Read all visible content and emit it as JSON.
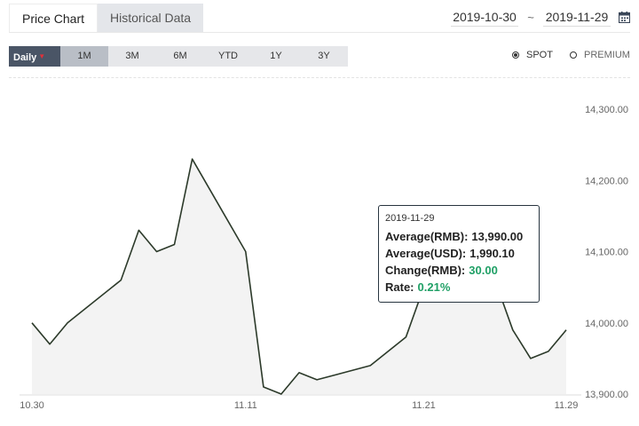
{
  "tabs": [
    {
      "label": "Price Chart",
      "active": true
    },
    {
      "label": "Historical Data",
      "active": false
    }
  ],
  "date_range": {
    "start": "2019-10-30",
    "separator": "~",
    "end": "2019-11-29"
  },
  "periods": {
    "daily_label": "Daily",
    "caret": "▼",
    "items": [
      "1M",
      "3M",
      "6M",
      "YTD",
      "1Y",
      "3Y"
    ],
    "selected": "1M"
  },
  "price_type": {
    "spot_label": "SPOT",
    "premium_label": "PREMIUM",
    "selected": "SPOT"
  },
  "tooltip": {
    "date": "2019-11-29",
    "avg_rmb_label": "Average(RMB):",
    "avg_rmb_value": "13,990.00",
    "avg_usd_label": "Average(USD):",
    "avg_usd_value": "1,990.10",
    "change_label": "Change(RMB):",
    "change_value": "30.00",
    "rate_label": "Rate:",
    "rate_value": "0.21%"
  },
  "colors": {
    "line": "#2c3a2a",
    "area": "#f3f3f3",
    "positive": "#20a066",
    "daily_bg": "#4a5566"
  },
  "chart_data": {
    "type": "area",
    "y_ticks": [
      "14,300.00",
      "14,200.00",
      "14,100.00",
      "14,000.00",
      "13,900.00"
    ],
    "y_tick_values": [
      14300,
      14200,
      14100,
      14000,
      13900
    ],
    "ylim": [
      13900,
      14300
    ],
    "x_tick_labels": [
      "10.30",
      "11.11",
      "11.21",
      "11.29"
    ],
    "x_tick_dates": [
      "2019-10-30",
      "2019-11-11",
      "2019-11-21",
      "2019-11-29"
    ],
    "points": [
      {
        "date": "2019-10-30",
        "value": 14000
      },
      {
        "date": "2019-10-31",
        "value": 13970
      },
      {
        "date": "2019-11-01",
        "value": 14000
      },
      {
        "date": "2019-11-04",
        "value": 14060
      },
      {
        "date": "2019-11-05",
        "value": 14130
      },
      {
        "date": "2019-11-06",
        "value": 14100
      },
      {
        "date": "2019-11-07",
        "value": 14110
      },
      {
        "date": "2019-11-08",
        "value": 14230
      },
      {
        "date": "2019-11-11",
        "value": 14100
      },
      {
        "date": "2019-11-12",
        "value": 13910
      },
      {
        "date": "2019-11-13",
        "value": 13900
      },
      {
        "date": "2019-11-14",
        "value": 13930
      },
      {
        "date": "2019-11-15",
        "value": 13920
      },
      {
        "date": "2019-11-18",
        "value": 13940
      },
      {
        "date": "2019-11-19",
        "value": 13960
      },
      {
        "date": "2019-11-20",
        "value": 13980
      },
      {
        "date": "2019-11-21",
        "value": 14050
      },
      {
        "date": "2019-11-22",
        "value": 14080
      },
      {
        "date": "2019-11-25",
        "value": 14060
      },
      {
        "date": "2019-11-26",
        "value": 13990
      },
      {
        "date": "2019-11-27",
        "value": 13950
      },
      {
        "date": "2019-11-28",
        "value": 13960
      },
      {
        "date": "2019-11-29",
        "value": 13990
      }
    ]
  }
}
